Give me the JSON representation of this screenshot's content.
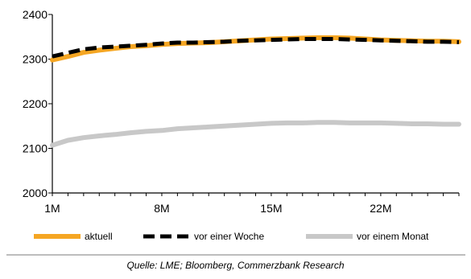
{
  "chart_data": {
    "type": "line",
    "x_tick_labels": [
      "1M",
      "8M",
      "15M",
      "22M"
    ],
    "x_tick_months": [
      1,
      8,
      15,
      22
    ],
    "xlim": [
      1,
      27
    ],
    "ylim": [
      2000,
      2400
    ],
    "y_ticks": [
      2000,
      2100,
      2200,
      2300,
      2400
    ],
    "grid": false,
    "legend_position": "bottom",
    "series": [
      {
        "name": "aktuell",
        "color": "#f5a623",
        "style": "solid",
        "x": [
          1,
          2,
          3,
          4,
          5,
          6,
          7,
          8,
          9,
          10,
          11,
          12,
          13,
          14,
          15,
          16,
          17,
          18,
          19,
          20,
          21,
          22,
          23,
          24,
          25,
          26,
          27
        ],
        "values": [
          2298,
          2306,
          2315,
          2320,
          2324,
          2328,
          2330,
          2333,
          2335,
          2336,
          2337,
          2339,
          2341,
          2343,
          2345,
          2346,
          2347,
          2348,
          2348,
          2347,
          2345,
          2343,
          2342,
          2341,
          2340,
          2340,
          2339
        ]
      },
      {
        "name": "vor einer Woche",
        "color": "#000000",
        "style": "dashed",
        "x": [
          1,
          2,
          3,
          4,
          5,
          6,
          7,
          8,
          9,
          10,
          11,
          12,
          13,
          14,
          15,
          16,
          17,
          18,
          19,
          20,
          21,
          22,
          23,
          24,
          25,
          26,
          27
        ],
        "values": [
          2306,
          2314,
          2322,
          2326,
          2328,
          2330,
          2332,
          2335,
          2337,
          2337,
          2338,
          2339,
          2341,
          2342,
          2343,
          2344,
          2345,
          2345,
          2345,
          2344,
          2343,
          2342,
          2341,
          2340,
          2339,
          2339,
          2338
        ]
      },
      {
        "name": "vor einem Monat",
        "color": "#c8c8c8",
        "style": "solid",
        "x": [
          1,
          2,
          3,
          4,
          5,
          6,
          7,
          8,
          9,
          10,
          11,
          12,
          13,
          14,
          15,
          16,
          17,
          18,
          19,
          20,
          21,
          22,
          23,
          24,
          25,
          26,
          27
        ],
        "values": [
          2107,
          2118,
          2124,
          2128,
          2131,
          2135,
          2138,
          2140,
          2144,
          2146,
          2148,
          2150,
          2152,
          2154,
          2156,
          2157,
          2157,
          2158,
          2158,
          2157,
          2157,
          2157,
          2156,
          2155,
          2155,
          2154,
          2154
        ]
      }
    ]
  },
  "source_note": "Quelle: LME; Bloomberg, Commerzbank Research"
}
